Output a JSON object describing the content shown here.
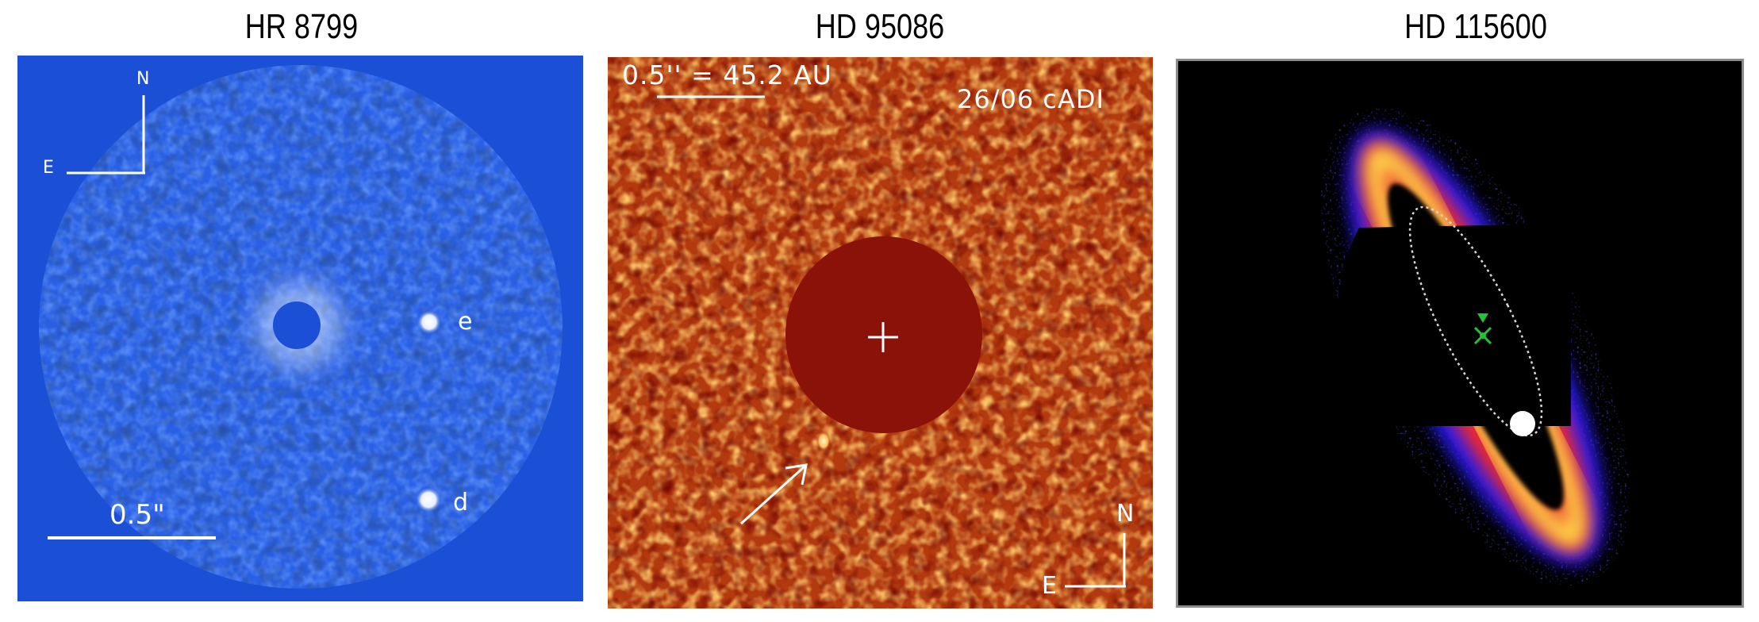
{
  "panels": [
    {
      "title": "HR 8799",
      "compass": {
        "north": "N",
        "east": "E"
      },
      "scale_label": "0.5\"",
      "planets": [
        {
          "label": "e"
        },
        {
          "label": "d"
        }
      ]
    },
    {
      "title": "HD 95086",
      "scale_label": "0.5'' = 45.2 AU",
      "epoch_label": "26/06 cADI",
      "compass": {
        "north": "N",
        "east": "E"
      }
    },
    {
      "title": "HD 115600"
    }
  ],
  "colors": {
    "hr8799_background": "#1a4fd6",
    "hd95086_background": "#b33a0f",
    "hd95086_mask": "#8b1208",
    "hd115600_background": "#000000",
    "disk_outer": "#2a1aff",
    "disk_mid": "#ff2a1a",
    "disk_core": "#ffe24a",
    "star_marker": "#22c33a"
  }
}
